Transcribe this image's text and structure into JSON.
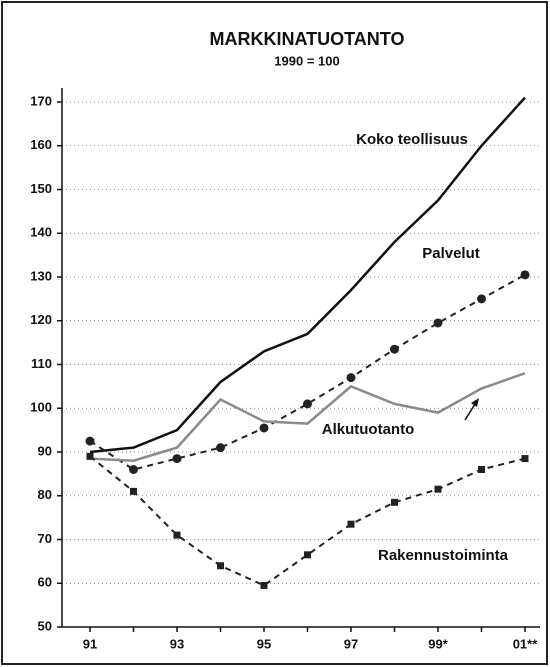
{
  "chart_data": {
    "type": "line",
    "title": "MARKKINATUOTANTO",
    "subtitle": "1990 = 100",
    "categories": [
      "91",
      null,
      "93",
      null,
      "95",
      null,
      "97",
      null,
      "99*",
      null,
      "01**"
    ],
    "ylim": [
      50,
      170
    ],
    "yticks": [
      50,
      60,
      70,
      80,
      90,
      100,
      110,
      120,
      130,
      140,
      150,
      160,
      170
    ],
    "grid": true,
    "series": [
      {
        "name": "Koko teollisuus",
        "color": "#111111",
        "style": "solid",
        "marker": "none",
        "values": [
          90,
          91,
          95,
          106,
          113,
          117,
          127,
          138,
          147.5,
          160,
          171
        ]
      },
      {
        "name": "Palvelut",
        "color": "#222222",
        "style": "dashed",
        "marker": "circle",
        "values": [
          92.5,
          86,
          88.5,
          91,
          95.5,
          101,
          107,
          113.5,
          119.5,
          125,
          130.5
        ]
      },
      {
        "name": "Alkutuotanto",
        "color": "#8a8a8a",
        "style": "solid",
        "marker": "none",
        "values": [
          88.5,
          88,
          91,
          102,
          97,
          96.5,
          105,
          101,
          99,
          104.5,
          108
        ]
      },
      {
        "name": "Rakennustoiminta",
        "color": "#222222",
        "style": "dashed",
        "marker": "square",
        "values": [
          89,
          81,
          71,
          64,
          59.5,
          66.5,
          73.5,
          78.5,
          81.5,
          86,
          88.5
        ]
      }
    ]
  }
}
